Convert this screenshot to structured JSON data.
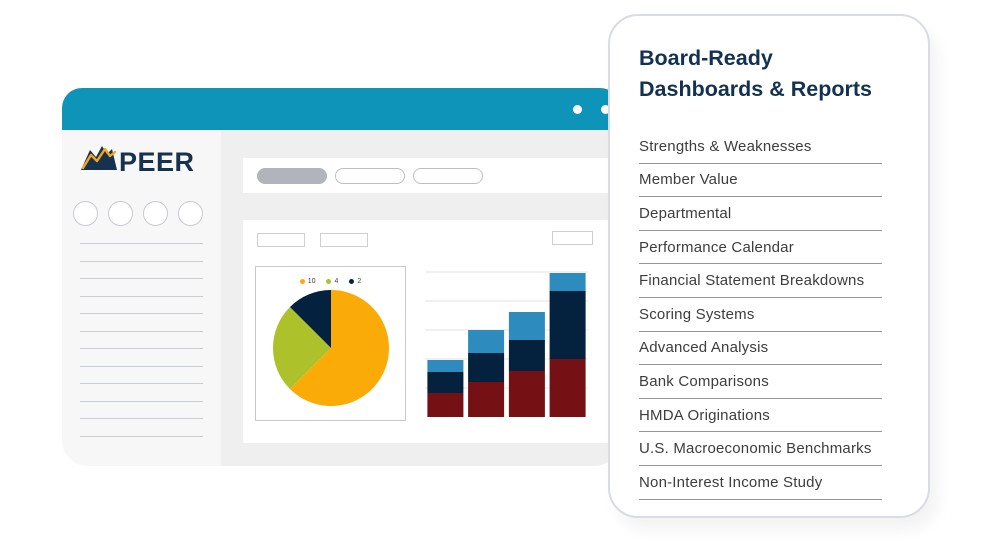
{
  "browser": {
    "titlebar_color": "#0e94b8",
    "logo": {
      "text": "PEER",
      "icon": "mountain-trendline-icon",
      "navy": "#16324f",
      "gold": "#f2a71b"
    },
    "placeholders": {
      "sidebar_circles": 4,
      "sidebar_lines": 12,
      "toolbar_pills_filled": 1,
      "toolbar_pills_outlined": 2,
      "chips": 3
    }
  },
  "card": {
    "title": "Board-Ready Dashboards & Reports",
    "title_color": "#133250",
    "items": [
      "Strengths & Weaknesses",
      "Member Value",
      "Departmental",
      "Performance Calendar",
      "Financial Statement Breakdowns",
      "Scoring Systems",
      "Advanced Analysis",
      "Bank Comparisons",
      "HMDA Originations",
      "U.S. Macroeconomic Benchmarks",
      "Non-Interest Income Study"
    ]
  },
  "chart_data": [
    {
      "type": "pie",
      "values": [
        10,
        4,
        2
      ],
      "labels": [
        "10",
        "4",
        "2"
      ],
      "colors": [
        "#fbab07",
        "#adc22a",
        "#04223f"
      ],
      "legend_position": "top",
      "start_angle_deg": -90,
      "direction": "clockwise",
      "title": "",
      "xlabel": "",
      "ylabel": ""
    },
    {
      "type": "bar",
      "stacked": true,
      "categories": [
        "",
        "",
        "",
        ""
      ],
      "series": [
        {
          "name": "bottom-segment",
          "color": "#751114",
          "values": [
            24,
            35,
            46,
            58
          ]
        },
        {
          "name": "middle-segment",
          "color": "#04213d",
          "values": [
            21,
            29,
            31,
            68
          ]
        },
        {
          "name": "top-segment",
          "color": "#2e8bbd",
          "values": [
            12,
            23,
            28,
            18
          ]
        }
      ],
      "ylim": [
        0,
        150
      ],
      "grid": true,
      "gridline_step": 29,
      "title": "",
      "xlabel": "",
      "ylabel": ""
    }
  ]
}
